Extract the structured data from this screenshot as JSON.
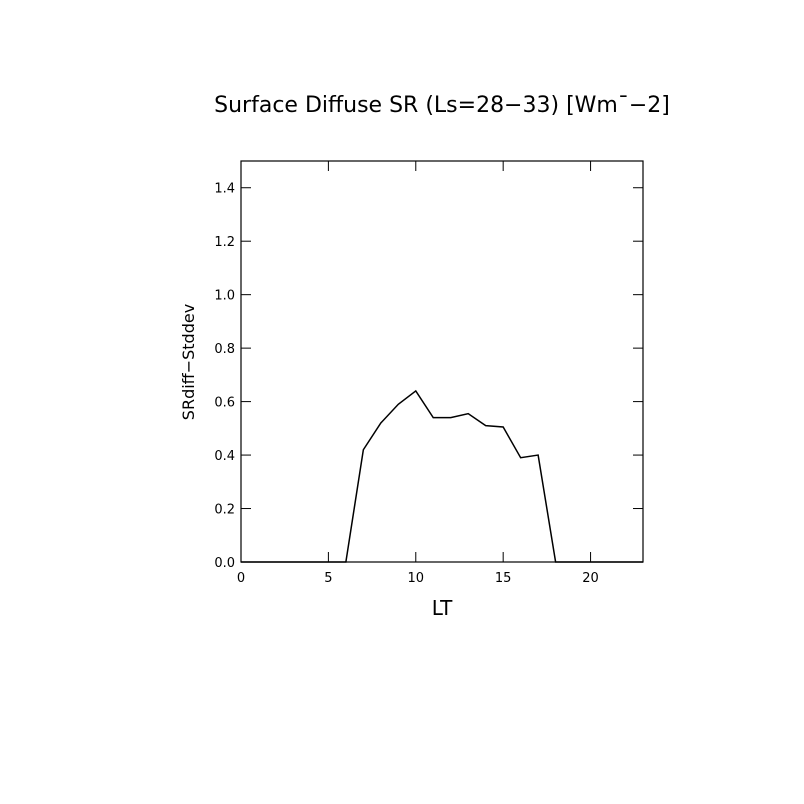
{
  "chart_data": {
    "type": "line",
    "title": "Surface Diffuse SR (Ls=28−33) [Wm¯−2]",
    "x_label": "LT",
    "y_label": "SRdiff−Stddev",
    "x": [
      0,
      1,
      2,
      3,
      4,
      5,
      6,
      7,
      8,
      9,
      10,
      11,
      12,
      13,
      14,
      15,
      16,
      17,
      18,
      19,
      20,
      21,
      22,
      23
    ],
    "series": [
      {
        "name": "SRdiff-Stddev",
        "color": "#000000",
        "values": [
          0,
          0,
          0,
          0,
          0,
          0,
          0,
          0.42,
          0.52,
          0.59,
          0.64,
          0.54,
          0.54,
          0.555,
          0.51,
          0.505,
          0.39,
          0.4,
          0,
          0,
          0,
          0,
          0,
          0
        ]
      }
    ],
    "xlim": [
      0,
      23
    ],
    "xticks": [
      0,
      5,
      10,
      15,
      20
    ],
    "ylim": [
      0,
      1.5
    ],
    "yticks": [
      {
        "value": 0,
        "label": "0.0"
      },
      0.2,
      0.4,
      0.6,
      0.8,
      {
        "value": 1,
        "label": "1.0"
      },
      1.2,
      1.4
    ]
  }
}
